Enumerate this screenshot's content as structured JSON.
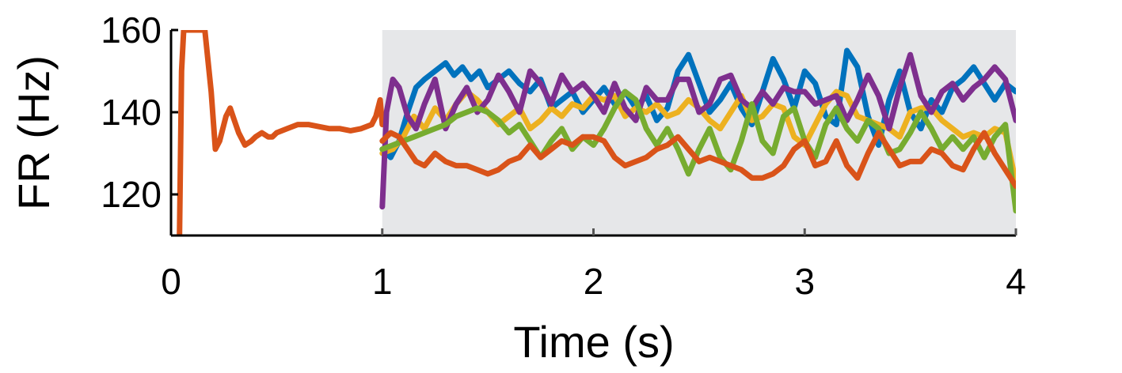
{
  "chart_data": {
    "type": "line",
    "xlabel": "Time (s)",
    "ylabel": "FR (Hz)",
    "xlim": [
      0,
      4
    ],
    "ylim": [
      110,
      160
    ],
    "x_ticks": [
      0,
      1,
      2,
      3,
      4
    ],
    "y_ticks": [
      120,
      140,
      160
    ],
    "grid": false,
    "shaded_region": {
      "x": [
        1,
        4
      ],
      "y": [
        110,
        160
      ],
      "color": "#e6e7e9"
    },
    "series": [
      {
        "color": "#d95319",
        "x": [
          0.04,
          0.05,
          0.06,
          0.08,
          0.1,
          0.13,
          0.16,
          0.19,
          0.21,
          0.23,
          0.26,
          0.28,
          0.3,
          0.32,
          0.35,
          0.38,
          0.4,
          0.43,
          0.46,
          0.48,
          0.5,
          0.55,
          0.6,
          0.65,
          0.7,
          0.75,
          0.8,
          0.85,
          0.9,
          0.95,
          0.97,
          0.99,
          1.0
        ],
        "values": [
          110,
          150,
          160,
          160,
          160,
          160,
          160,
          145,
          131,
          133,
          139,
          141,
          138,
          135,
          132,
          133,
          134,
          135,
          134,
          134,
          135,
          136,
          137,
          137,
          136.5,
          136,
          136,
          135.5,
          136,
          137,
          139,
          143,
          137
        ]
      },
      {
        "color": "#0072bd",
        "x": [
          1.0,
          1.04,
          1.08,
          1.12,
          1.16,
          1.2,
          1.25,
          1.3,
          1.34,
          1.38,
          1.42,
          1.46,
          1.5,
          1.55,
          1.6,
          1.65,
          1.7,
          1.75,
          1.8,
          1.85,
          1.9,
          1.95,
          2.0,
          2.05,
          2.1,
          2.15,
          2.2,
          2.25,
          2.3,
          2.35,
          2.4,
          2.45,
          2.5,
          2.55,
          2.6,
          2.65,
          2.7,
          2.75,
          2.8,
          2.85,
          2.9,
          2.95,
          3.0,
          3.05,
          3.1,
          3.15,
          3.2,
          3.25,
          3.3,
          3.35,
          3.4,
          3.45,
          3.5,
          3.55,
          3.6,
          3.65,
          3.7,
          3.75,
          3.8,
          3.85,
          3.9,
          3.95,
          4.0
        ],
        "values": [
          131,
          129,
          133,
          140,
          146,
          148,
          150,
          152,
          149,
          151,
          148,
          150,
          146,
          148,
          150,
          147,
          145,
          148,
          141,
          143,
          145,
          140,
          143,
          146,
          142,
          145,
          141,
          144,
          138,
          141,
          150,
          154,
          147,
          140,
          143,
          147,
          141,
          137,
          145,
          153,
          148,
          141,
          150,
          147,
          139,
          137,
          155,
          151,
          139,
          132,
          143,
          150,
          140,
          136,
          143,
          140,
          146,
          148,
          151,
          147,
          143,
          147,
          145
        ]
      },
      {
        "color": "#edb120",
        "x": [
          1.0,
          1.05,
          1.1,
          1.15,
          1.2,
          1.25,
          1.3,
          1.35,
          1.4,
          1.45,
          1.5,
          1.55,
          1.6,
          1.65,
          1.7,
          1.75,
          1.8,
          1.85,
          1.9,
          1.95,
          2.0,
          2.05,
          2.1,
          2.15,
          2.2,
          2.25,
          2.3,
          2.35,
          2.4,
          2.45,
          2.5,
          2.55,
          2.6,
          2.65,
          2.7,
          2.75,
          2.8,
          2.85,
          2.9,
          2.95,
          3.0,
          3.05,
          3.1,
          3.15,
          3.2,
          3.25,
          3.3,
          3.35,
          3.4,
          3.45,
          3.5,
          3.55,
          3.6,
          3.65,
          3.7,
          3.75,
          3.8,
          3.85,
          3.9,
          3.95,
          4.0
        ],
        "values": [
          130,
          131,
          134,
          139,
          136,
          141,
          138,
          142,
          145,
          143,
          140,
          137,
          139,
          141,
          136,
          138,
          141,
          139,
          142,
          141,
          144,
          143,
          144,
          139,
          141,
          140,
          142,
          139,
          140,
          143,
          141,
          138,
          136,
          140,
          144,
          138,
          139,
          142,
          141,
          134,
          132,
          137,
          142,
          145,
          144,
          139,
          138,
          137,
          136,
          134,
          140,
          141,
          141,
          138,
          136,
          134,
          135,
          134,
          136,
          135,
          123
        ]
      },
      {
        "color": "#7e2f8e",
        "x": [
          1.0,
          1.02,
          1.05,
          1.08,
          1.12,
          1.16,
          1.2,
          1.25,
          1.3,
          1.35,
          1.4,
          1.45,
          1.5,
          1.55,
          1.6,
          1.65,
          1.7,
          1.75,
          1.8,
          1.85,
          1.9,
          1.95,
          2.0,
          2.05,
          2.1,
          2.15,
          2.2,
          2.25,
          2.3,
          2.35,
          2.4,
          2.45,
          2.5,
          2.55,
          2.6,
          2.65,
          2.7,
          2.75,
          2.8,
          2.85,
          2.9,
          2.95,
          3.0,
          3.05,
          3.1,
          3.15,
          3.2,
          3.25,
          3.3,
          3.35,
          3.4,
          3.45,
          3.5,
          3.55,
          3.6,
          3.65,
          3.7,
          3.75,
          3.8,
          3.85,
          3.9,
          3.95,
          4.0
        ],
        "values": [
          117,
          140,
          148,
          146,
          139,
          136,
          142,
          148,
          136,
          142,
          146,
          140,
          143,
          149,
          145,
          140,
          150,
          147,
          142,
          149,
          145,
          147,
          144,
          140,
          147,
          141,
          138,
          146,
          143,
          143,
          148,
          148,
          140,
          142,
          148,
          149,
          143,
          141,
          145,
          142,
          146,
          145,
          145,
          142,
          143,
          144,
          138,
          143,
          149,
          144,
          136,
          146,
          154,
          144,
          140,
          145,
          147,
          143,
          146,
          148,
          151,
          148,
          138
        ]
      },
      {
        "color": "#77ac30",
        "x": [
          1.0,
          1.05,
          1.1,
          1.15,
          1.2,
          1.25,
          1.3,
          1.35,
          1.4,
          1.45,
          1.5,
          1.55,
          1.6,
          1.65,
          1.7,
          1.75,
          1.8,
          1.85,
          1.9,
          1.95,
          2.0,
          2.05,
          2.1,
          2.15,
          2.2,
          2.25,
          2.3,
          2.35,
          2.4,
          2.45,
          2.5,
          2.55,
          2.6,
          2.65,
          2.7,
          2.75,
          2.8,
          2.85,
          2.9,
          2.95,
          3.0,
          3.05,
          3.1,
          3.15,
          3.2,
          3.25,
          3.3,
          3.35,
          3.4,
          3.45,
          3.5,
          3.55,
          3.6,
          3.65,
          3.7,
          3.75,
          3.8,
          3.85,
          3.9,
          3.95,
          4.0
        ],
        "values": [
          131,
          132,
          133,
          134,
          135,
          136,
          137,
          139,
          140,
          141,
          140,
          138,
          135,
          137,
          133,
          129,
          133,
          136,
          131,
          134,
          132,
          136,
          141,
          145,
          143,
          136,
          132,
          136,
          131,
          125,
          131,
          136,
          129,
          126,
          133,
          142,
          133,
          130,
          139,
          141,
          133,
          129,
          137,
          141,
          136,
          133,
          138,
          136,
          130,
          131,
          135,
          140,
          136,
          131,
          134,
          131,
          134,
          129,
          134,
          137,
          116
        ]
      },
      {
        "color": "#d95319",
        "x": [
          1.0,
          1.04,
          1.08,
          1.12,
          1.16,
          1.2,
          1.25,
          1.3,
          1.35,
          1.4,
          1.45,
          1.5,
          1.55,
          1.6,
          1.65,
          1.7,
          1.75,
          1.8,
          1.85,
          1.9,
          1.95,
          2.0,
          2.05,
          2.1,
          2.15,
          2.2,
          2.25,
          2.3,
          2.35,
          2.4,
          2.45,
          2.5,
          2.55,
          2.6,
          2.65,
          2.7,
          2.75,
          2.8,
          2.85,
          2.9,
          2.95,
          3.0,
          3.05,
          3.1,
          3.15,
          3.2,
          3.25,
          3.3,
          3.35,
          3.4,
          3.45,
          3.5,
          3.55,
          3.6,
          3.65,
          3.7,
          3.75,
          3.8,
          3.85,
          3.9,
          3.95,
          4.0
        ],
        "values": [
          133,
          135,
          134,
          131,
          128,
          127,
          130,
          128,
          127,
          127,
          126,
          125,
          126,
          128,
          129,
          132,
          129,
          131,
          133,
          132,
          134,
          134,
          133,
          129,
          127,
          128,
          129,
          131,
          132,
          134,
          131,
          128,
          129,
          128,
          127,
          126,
          124,
          124,
          125,
          127,
          131,
          133,
          127,
          128,
          133,
          127,
          124,
          130,
          135,
          131,
          127,
          128,
          128,
          131,
          130,
          127,
          126,
          131,
          135,
          130,
          126,
          122
        ]
      }
    ]
  }
}
